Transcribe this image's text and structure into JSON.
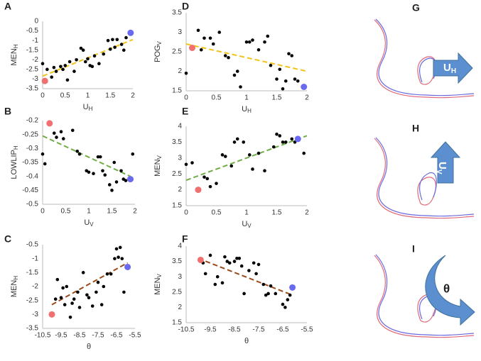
{
  "chart_data": [
    {
      "type": "scatter",
      "panel": "A",
      "xlabel": "U",
      "xlabel_sub": "H",
      "ylabel": "MEN",
      "ylabel_sub": "H",
      "xlim": [
        0,
        2
      ],
      "xticks": [
        0,
        0.5,
        1,
        1.5,
        2
      ],
      "ylim": [
        -3.5,
        0
      ],
      "yticks": [
        0,
        -0.5,
        -1,
        -1.5,
        -2,
        -2.5,
        -3,
        -3.5
      ],
      "series": [
        {
          "color": "#000000",
          "x": [
            0,
            0.1,
            0.2,
            0.25,
            0.3,
            0.4,
            0.45,
            0.5,
            0.55,
            0.6,
            0.7,
            0.75,
            0.85,
            0.9,
            0.95,
            1.0,
            1.05,
            1.1,
            1.15,
            1.25,
            1.35,
            1.45,
            1.5,
            1.55,
            1.6,
            1.65,
            1.75,
            1.8,
            1.85
          ],
          "values": [
            -2.2,
            -2.5,
            -2.9,
            -2.4,
            -2.6,
            -2.35,
            -2.5,
            -2.3,
            -3.05,
            -2.1,
            -2.6,
            -2.0,
            -1.4,
            -1.5,
            -2.1,
            -1.95,
            -2.3,
            -2.35,
            -1.8,
            -2.2,
            -1.7,
            -1.0,
            -1.45,
            -0.95,
            -1.35,
            -0.95,
            -1.2,
            -1.5,
            -0.85
          ]
        },
        {
          "color": "#f07070",
          "x": [
            0.05
          ],
          "values": [
            -3.1
          ]
        },
        {
          "color": "#6a6af0",
          "x": [
            1.95
          ],
          "values": [
            -0.6
          ]
        }
      ],
      "trend": {
        "color": "#f2c318",
        "x": [
          0,
          2
        ],
        "values": [
          -2.85,
          -0.95
        ]
      }
    },
    {
      "type": "scatter",
      "panel": "B",
      "xlabel": "U",
      "xlabel_sub": "V",
      "ylabel": "LOWLIP",
      "ylabel_sub": "H",
      "xlim": [
        0,
        2
      ],
      "xticks": [
        0,
        0.5,
        1,
        1.5,
        2
      ],
      "ylim": [
        -0.5,
        -0.2
      ],
      "yticks": [
        -0.2,
        -0.25,
        -0.3,
        -0.35,
        -0.4,
        -0.45,
        -0.5
      ],
      "series": [
        {
          "color": "#000000",
          "x": [
            0,
            0.05,
            0.25,
            0.3,
            0.4,
            0.45,
            0.65,
            0.75,
            0.8,
            0.95,
            1.0,
            1.1,
            1.2,
            1.25,
            1.3,
            1.35,
            1.45,
            1.5,
            1.55,
            1.6,
            1.7,
            1.75,
            1.8,
            1.95
          ],
          "values": [
            -0.32,
            -0.355,
            -0.245,
            -0.26,
            -0.24,
            -0.265,
            -0.235,
            -0.31,
            -0.32,
            -0.38,
            -0.385,
            -0.39,
            -0.33,
            -0.33,
            -0.38,
            -0.395,
            -0.43,
            -0.45,
            -0.35,
            -0.42,
            -0.38,
            -0.41,
            -0.415,
            -0.32
          ]
        },
        {
          "color": "#f07070",
          "x": [
            0.15
          ],
          "values": [
            -0.21
          ]
        },
        {
          "color": "#6a6af0",
          "x": [
            1.9
          ],
          "values": [
            -0.41
          ]
        }
      ],
      "trend": {
        "color": "#70ad47",
        "x": [
          0,
          1.9
        ],
        "values": [
          -0.255,
          -0.4
        ]
      }
    },
    {
      "type": "scatter",
      "panel": "C",
      "xlabel": "θ",
      "ylabel": "MEN",
      "ylabel_sub": "H",
      "xlim": [
        -10.5,
        -5.5
      ],
      "xticks": [
        -10.5,
        -9.5,
        -8.5,
        -7.5,
        -6.5,
        -5.5
      ],
      "ylim": [
        -3.5,
        -0.5
      ],
      "yticks": [
        -0.5,
        -1,
        -1.5,
        -2,
        -2.5,
        -3,
        -3.5
      ],
      "series": [
        {
          "color": "#000000",
          "x": [
            -9.8,
            -9.7,
            -9.5,
            -9.4,
            -9.3,
            -9.2,
            -9.0,
            -8.9,
            -8.8,
            -8.6,
            -8.5,
            -8.3,
            -8.1,
            -8.0,
            -7.8,
            -7.6,
            -7.5,
            -7.3,
            -7.2,
            -7.0,
            -6.8,
            -6.6,
            -6.5,
            -6.4,
            -6.3,
            -6.2,
            -6.1
          ],
          "values": [
            -2.45,
            -1.75,
            -2.4,
            -2.05,
            -2.65,
            -2.0,
            -3.1,
            -2.6,
            -2.45,
            -2.2,
            -2.75,
            -1.5,
            -2.3,
            -2.4,
            -2.7,
            -2.2,
            -1.85,
            -2.65,
            -2.0,
            -1.55,
            -1.55,
            -1.0,
            -0.65,
            -0.95,
            -0.6,
            -1.0,
            -2.2
          ]
        },
        {
          "color": "#f07070",
          "x": [
            -10.0
          ],
          "values": [
            -3.0
          ]
        },
        {
          "color": "#6a6af0",
          "x": [
            -5.9
          ],
          "values": [
            -1.3
          ]
        }
      ],
      "trend": {
        "color": "#9c4a1a",
        "x": [
          -10,
          -5.9
        ],
        "values": [
          -2.65,
          -1.15
        ]
      }
    },
    {
      "type": "scatter",
      "panel": "D",
      "xlabel": "U",
      "xlabel_sub": "H",
      "ylabel": "POG",
      "ylabel_sub": "V",
      "xlim": [
        0,
        2
      ],
      "xticks": [
        0,
        0.5,
        1,
        1.5,
        2
      ],
      "ylim": [
        1.5,
        3.5
      ],
      "yticks": [
        1.5,
        2,
        2.5,
        3,
        3.5
      ],
      "series": [
        {
          "color": "#000000",
          "x": [
            0,
            0.2,
            0.25,
            0.3,
            0.4,
            0.45,
            0.55,
            0.65,
            0.7,
            0.8,
            0.85,
            0.9,
            1.0,
            1.05,
            1.1,
            1.2,
            1.3,
            1.35,
            1.4,
            1.5,
            1.55,
            1.6,
            1.65,
            1.7,
            1.75,
            1.8,
            1.85
          ],
          "values": [
            1.95,
            3.05,
            2.55,
            2.85,
            2.85,
            2.7,
            3.0,
            2.4,
            2.35,
            1.9,
            2.0,
            1.6,
            2.75,
            2.75,
            2.8,
            2.55,
            2.75,
            2.9,
            2.15,
            1.8,
            2.05,
            1.55,
            1.75,
            2.45,
            2.4,
            1.8,
            1.75
          ]
        },
        {
          "color": "#f07070",
          "x": [
            0.1
          ],
          "values": [
            2.6
          ]
        },
        {
          "color": "#6a6af0",
          "x": [
            1.95
          ],
          "values": [
            1.6
          ]
        }
      ],
      "trend": {
        "color": "#f2c318",
        "x": [
          0,
          2
        ],
        "values": [
          2.7,
          2.0
        ]
      }
    },
    {
      "type": "scatter",
      "panel": "E",
      "xlabel": "U",
      "xlabel_sub": "V",
      "ylabel": "MEN",
      "ylabel_sub": "V",
      "xlim": [
        0,
        2
      ],
      "xticks": [
        0,
        0.5,
        1,
        1.5,
        2
      ],
      "ylim": [
        1.5,
        4
      ],
      "yticks": [
        1.5,
        2,
        2.5,
        3,
        3.5,
        4
      ],
      "series": [
        {
          "color": "#000000",
          "x": [
            0,
            0.1,
            0.3,
            0.35,
            0.4,
            0.5,
            0.6,
            0.65,
            0.75,
            0.8,
            0.85,
            0.95,
            1.05,
            1.1,
            1.2,
            1.3,
            1.45,
            1.5,
            1.55,
            1.6,
            1.65,
            1.75,
            1.8,
            1.95
          ],
          "values": [
            2.8,
            2.85,
            2.4,
            2.35,
            2.1,
            2.2,
            3.1,
            3.05,
            2.75,
            3.5,
            3.6,
            3.5,
            3.1,
            2.65,
            3.15,
            2.6,
            3.35,
            3.75,
            3.7,
            3.5,
            3.5,
            3.6,
            3.5,
            3.15
          ]
        },
        {
          "color": "#f07070",
          "x": [
            0.2
          ],
          "values": [
            2.0
          ]
        },
        {
          "color": "#6a6af0",
          "x": [
            1.85
          ],
          "values": [
            3.6
          ]
        }
      ],
      "trend": {
        "color": "#70ad47",
        "x": [
          0,
          2
        ],
        "values": [
          2.3,
          3.7
        ]
      }
    },
    {
      "type": "scatter",
      "panel": "F",
      "xlabel": "θ",
      "ylabel": "MEN",
      "ylabel_sub": "V",
      "xlim": [
        -10.5,
        -5.5
      ],
      "xticks": [
        -10.5,
        -9.5,
        -8.5,
        -7.5,
        -6.5,
        -5.5
      ],
      "ylim": [
        1.5,
        4
      ],
      "yticks": [
        1.5,
        2,
        2.5,
        3,
        3.5,
        4
      ],
      "series": [
        {
          "color": "#000000",
          "x": [
            -9.8,
            -9.7,
            -9.5,
            -9.3,
            -9.2,
            -9.0,
            -8.9,
            -8.8,
            -8.7,
            -8.5,
            -8.4,
            -8.3,
            -8.2,
            -8.1,
            -7.9,
            -7.7,
            -7.6,
            -7.5,
            -7.3,
            -7.2,
            -7.1,
            -7.0,
            -6.8,
            -6.5,
            -6.4,
            -6.3,
            -6.2
          ],
          "values": [
            3.45,
            3.1,
            3.7,
            2.75,
            3.0,
            2.8,
            3.65,
            3.5,
            3.45,
            3.5,
            3.6,
            3.6,
            3.35,
            2.45,
            3.2,
            3.45,
            3.1,
            3.4,
            2.75,
            2.4,
            2.45,
            2.7,
            2.45,
            2.1,
            2.0,
            2.25,
            2.4
          ]
        },
        {
          "color": "#f07070",
          "x": [
            -9.9
          ],
          "values": [
            3.55
          ]
        },
        {
          "color": "#6a6af0",
          "x": [
            -6.1
          ],
          "values": [
            2.65
          ]
        }
      ],
      "trend": {
        "color": "#9c4a1a",
        "x": [
          -10,
          -6.1
        ],
        "values": [
          3.6,
          2.4
        ]
      }
    }
  ],
  "panels": [
    {
      "letter": "G",
      "arrow": "U",
      "arrow_sub": "H"
    },
    {
      "letter": "H",
      "arrow": "U",
      "arrow_sub": "V"
    },
    {
      "letter": "I",
      "arrow": "θ"
    }
  ]
}
